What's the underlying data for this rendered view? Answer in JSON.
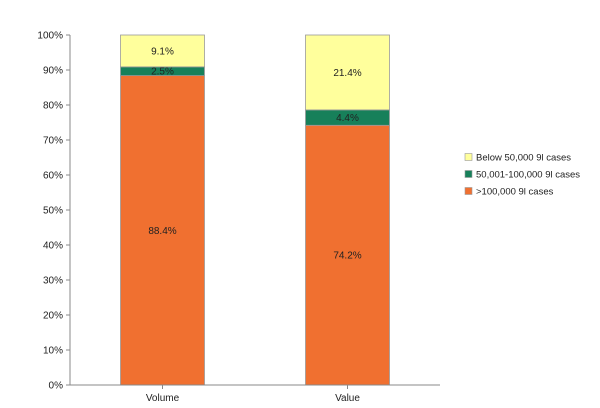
{
  "chart_data": {
    "type": "bar",
    "stacked": true,
    "title": "",
    "xlabel": "",
    "ylabel": "",
    "ylim": [
      0,
      100
    ],
    "y_ticks": [
      "0%",
      "10%",
      "20%",
      "30%",
      "40%",
      "50%",
      "60%",
      "70%",
      "80%",
      "90%",
      "100%"
    ],
    "categories": [
      "Volume",
      "Value"
    ],
    "series": [
      {
        "name": ">100,000 9l cases",
        "color": "#F07030",
        "values": [
          88.4,
          74.2
        ],
        "labels": [
          "88.4%",
          "74.2%"
        ]
      },
      {
        "name": "50,001-100,000 9l cases",
        "color": "#17805A",
        "values": [
          2.5,
          4.4
        ],
        "labels": [
          "2.5%",
          "4.4%"
        ]
      },
      {
        "name": "Below 50,000 9l cases",
        "color": "#FFFF9C",
        "values": [
          9.1,
          21.4
        ],
        "labels": [
          "9.1%",
          "21.4%"
        ]
      }
    ],
    "legend_order": [
      "Below 50,000 9l cases",
      "50,001-100,000 9l cases",
      ">100,000 9l cases"
    ],
    "legend_position": "right",
    "grid": false
  }
}
